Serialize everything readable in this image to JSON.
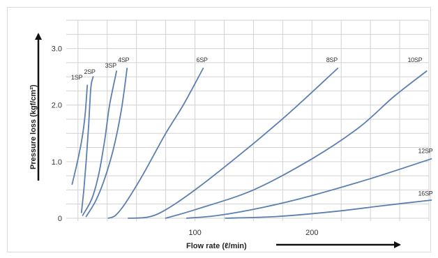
{
  "chart_data": {
    "type": "line",
    "xlabel": "Flow rate (ℓ/min)",
    "ylabel": "Pressure loss (kgf/cm²)",
    "x_ticks": [
      "100",
      "200"
    ],
    "y_ticks": [
      "0",
      "1.0",
      "2.0",
      "3.0"
    ],
    "xlim": [
      -10,
      300
    ],
    "ylim": [
      -0.05,
      3.5
    ],
    "grid": true,
    "colors": {
      "series": "#5b7fb0",
      "grid": "#d2d2d2",
      "axis": "#222222"
    },
    "series": [
      {
        "name": "1SP",
        "points": [
          [
            -5,
            0.6
          ],
          [
            -1,
            0.95
          ],
          [
            3,
            1.35
          ],
          [
            6,
            1.8
          ],
          [
            8,
            2.35
          ]
        ]
      },
      {
        "name": "2SP",
        "points": [
          [
            3,
            0.1
          ],
          [
            5,
            0.5
          ],
          [
            7,
            1.0
          ],
          [
            9,
            1.6
          ],
          [
            11,
            2.3
          ],
          [
            13,
            2.5
          ]
        ]
      },
      {
        "name": "3SP",
        "points": [
          [
            4,
            0.05
          ],
          [
            12,
            0.35
          ],
          [
            18,
            0.8
          ],
          [
            23,
            1.4
          ],
          [
            27,
            2.0
          ],
          [
            33,
            2.6
          ]
        ]
      },
      {
        "name": "4SP",
        "points": [
          [
            7,
            0.03
          ],
          [
            15,
            0.3
          ],
          [
            22,
            0.65
          ],
          [
            30,
            1.2
          ],
          [
            37,
            1.9
          ],
          [
            42,
            2.65
          ]
        ]
      },
      {
        "name": "6SP",
        "points": [
          [
            26,
            0.0
          ],
          [
            32,
            0.05
          ],
          [
            40,
            0.25
          ],
          [
            55,
            0.75
          ],
          [
            75,
            1.5
          ],
          [
            90,
            2.0
          ],
          [
            107,
            2.65
          ]
        ]
      },
      {
        "name": "8SP",
        "points": [
          [
            43,
            0.0
          ],
          [
            60,
            0.02
          ],
          [
            75,
            0.15
          ],
          [
            100,
            0.5
          ],
          [
            140,
            1.15
          ],
          [
            180,
            1.85
          ],
          [
            222,
            2.65
          ]
        ]
      },
      {
        "name": "10SP",
        "points": [
          [
            75,
            0.0
          ],
          [
            100,
            0.15
          ],
          [
            150,
            0.5
          ],
          [
            200,
            1.05
          ],
          [
            240,
            1.6
          ],
          [
            270,
            2.15
          ],
          [
            298,
            2.6
          ]
        ]
      },
      {
        "name": "12SP",
        "points": [
          [
            93,
            0.0
          ],
          [
            120,
            0.05
          ],
          [
            160,
            0.2
          ],
          [
            200,
            0.4
          ],
          [
            250,
            0.7
          ],
          [
            302,
            1.05
          ]
        ]
      },
      {
        "name": "16SP",
        "points": [
          [
            126,
            0.0
          ],
          [
            170,
            0.03
          ],
          [
            220,
            0.12
          ],
          [
            260,
            0.22
          ],
          [
            302,
            0.32
          ]
        ]
      }
    ],
    "labels": [
      {
        "series": "1SP",
        "text": "1SP",
        "x": -1,
        "y": 2.45
      },
      {
        "series": "2SP",
        "text": "2SP",
        "x": 10,
        "y": 2.55
      },
      {
        "series": "3SP",
        "text": "3SP",
        "x": 28,
        "y": 2.66
      },
      {
        "series": "4SP",
        "text": "4SP",
        "x": 39,
        "y": 2.76
      },
      {
        "series": "6SP",
        "text": "6SP",
        "x": 106,
        "y": 2.76
      },
      {
        "series": "8SP",
        "text": "8SP",
        "x": 217,
        "y": 2.76
      },
      {
        "series": "10SP",
        "text": "10SP",
        "x": 288,
        "y": 2.76
      },
      {
        "series": "12SP",
        "text": "12SP",
        "x": 297,
        "y": 1.15
      },
      {
        "series": "16SP",
        "text": "16SP",
        "x": 297,
        "y": 0.4
      }
    ]
  }
}
